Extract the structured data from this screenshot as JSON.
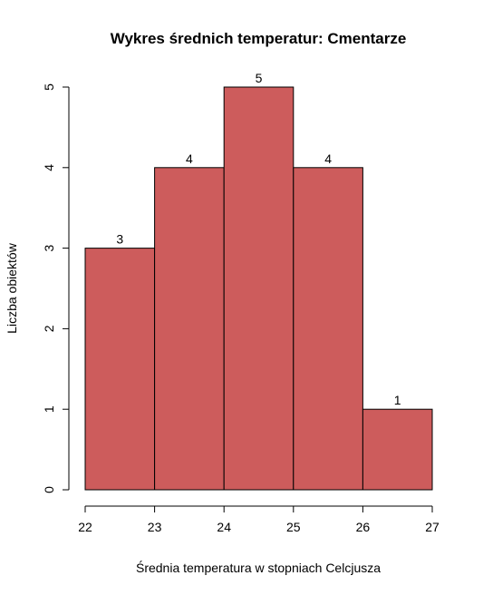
{
  "chart_data": {
    "type": "bar",
    "title": "Wykres średnich temperatur: Cmentarze",
    "xlabel": "Średnia temperatura w stopniach Celcjusza",
    "ylabel": "Liczba obiektów",
    "bins": [
      {
        "from": 22,
        "to": 23,
        "count": 3
      },
      {
        "from": 23,
        "to": 24,
        "count": 4
      },
      {
        "from": 24,
        "to": 25,
        "count": 5
      },
      {
        "from": 25,
        "to": 26,
        "count": 4
      },
      {
        "from": 26,
        "to": 27,
        "count": 1
      }
    ],
    "xlim": [
      22,
      27
    ],
    "ylim": [
      0,
      5
    ],
    "xticks": [
      22,
      23,
      24,
      25,
      26,
      27
    ],
    "yticks": [
      0,
      1,
      2,
      3,
      4,
      5
    ],
    "bar_color": "#cd5c5c",
    "grid": false,
    "legend": "none"
  }
}
